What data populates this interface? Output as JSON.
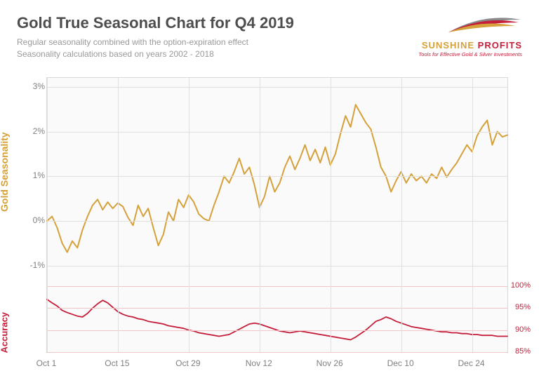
{
  "title": "Gold True Seasonal Chart for Q4 2019",
  "subtitle_line1": "Regular seasonality combined with the option-expiration effect",
  "subtitle_line2": "Seasonality calculations based on years 2002 - 2018",
  "logo": {
    "name_pre": "SUNSHINE ",
    "name_post": "PROFITS",
    "tagline": "Tools for Effective Gold & Silver Investments",
    "swoosh_colors": [
      "#d4a13a",
      "#c41e3a",
      "#8a8a8a"
    ]
  },
  "plot": {
    "background": "#fafafa",
    "grid_color": "#e0e0e0",
    "border_color": "#d9d9d9",
    "axis_bottom_color": "#b0b0b0"
  },
  "left_axis": {
    "label": "Gold Seasonality",
    "label_color": "#d4a13a",
    "tick_color": "#808080",
    "ticks": [
      {
        "v": -1,
        "label": "-1%"
      },
      {
        "v": 0,
        "label": "0%"
      },
      {
        "v": 1,
        "label": "1%"
      },
      {
        "v": 2,
        "label": "2%"
      },
      {
        "v": 3,
        "label": "3%"
      }
    ],
    "range_min": -1.4,
    "range_max": 3.2,
    "chart_top_frac": 0.0,
    "chart_bottom_frac": 0.75
  },
  "right_axis": {
    "label": "Accuracy",
    "label_color": "#c41e3a",
    "line_color": "#f2c6c6",
    "tick_color": "#c41e3a",
    "ticks": [
      {
        "v": 85,
        "label": "85%"
      },
      {
        "v": 90,
        "label": "90%"
      },
      {
        "v": 95,
        "label": "95%"
      },
      {
        "v": 100,
        "label": "100%"
      }
    ],
    "range_min": 85,
    "range_max": 100,
    "chart_top_frac": 0.76,
    "chart_bottom_frac": 1.0
  },
  "x_axis": {
    "tick_color": "#808080",
    "range_min": 0,
    "range_max": 91,
    "ticks": [
      {
        "v": 0,
        "label": "Oct 1"
      },
      {
        "v": 14,
        "label": "Oct 15"
      },
      {
        "v": 28,
        "label": "Oct 29"
      },
      {
        "v": 42,
        "label": "Nov 12"
      },
      {
        "v": 56,
        "label": "Nov 26"
      },
      {
        "v": 70,
        "label": "Dec 10"
      },
      {
        "v": 84,
        "label": "Dec 24"
      }
    ]
  },
  "series_gold": {
    "color": "#d4a13a",
    "width": 2.0,
    "data": [
      [
        0,
        0.0
      ],
      [
        1,
        0.1
      ],
      [
        2,
        -0.15
      ],
      [
        3,
        -0.5
      ],
      [
        4,
        -0.7
      ],
      [
        5,
        -0.45
      ],
      [
        6,
        -0.6
      ],
      [
        7,
        -0.2
      ],
      [
        8,
        0.1
      ],
      [
        9,
        0.35
      ],
      [
        10,
        0.48
      ],
      [
        11,
        0.25
      ],
      [
        12,
        0.42
      ],
      [
        13,
        0.28
      ],
      [
        14,
        0.4
      ],
      [
        15,
        0.32
      ],
      [
        16,
        0.08
      ],
      [
        17,
        -0.1
      ],
      [
        18,
        0.35
      ],
      [
        19,
        0.1
      ],
      [
        20,
        0.28
      ],
      [
        21,
        -0.15
      ],
      [
        22,
        -0.55
      ],
      [
        23,
        -0.3
      ],
      [
        24,
        0.2
      ],
      [
        25,
        0.0
      ],
      [
        26,
        0.48
      ],
      [
        27,
        0.3
      ],
      [
        28,
        0.58
      ],
      [
        29,
        0.42
      ],
      [
        30,
        0.15
      ],
      [
        31,
        0.05
      ],
      [
        32,
        0.0
      ],
      [
        33,
        0.35
      ],
      [
        34,
        0.65
      ],
      [
        35,
        1.0
      ],
      [
        36,
        0.85
      ],
      [
        37,
        1.1
      ],
      [
        38,
        1.4
      ],
      [
        39,
        1.05
      ],
      [
        40,
        1.2
      ],
      [
        41,
        0.8
      ],
      [
        42,
        0.3
      ],
      [
        43,
        0.55
      ],
      [
        44,
        1.0
      ],
      [
        45,
        0.65
      ],
      [
        46,
        0.85
      ],
      [
        47,
        1.2
      ],
      [
        48,
        1.45
      ],
      [
        49,
        1.15
      ],
      [
        50,
        1.4
      ],
      [
        51,
        1.7
      ],
      [
        52,
        1.35
      ],
      [
        53,
        1.6
      ],
      [
        54,
        1.3
      ],
      [
        55,
        1.65
      ],
      [
        56,
        1.25
      ],
      [
        57,
        1.5
      ],
      [
        58,
        1.95
      ],
      [
        59,
        2.35
      ],
      [
        60,
        2.1
      ],
      [
        61,
        2.6
      ],
      [
        62,
        2.4
      ],
      [
        63,
        2.2
      ],
      [
        64,
        2.05
      ],
      [
        65,
        1.65
      ],
      [
        66,
        1.2
      ],
      [
        67,
        1.0
      ],
      [
        68,
        0.65
      ],
      [
        69,
        0.9
      ],
      [
        70,
        1.1
      ],
      [
        71,
        0.85
      ],
      [
        72,
        1.05
      ],
      [
        73,
        0.9
      ],
      [
        74,
        1.0
      ],
      [
        75,
        0.85
      ],
      [
        76,
        1.05
      ],
      [
        77,
        0.95
      ],
      [
        78,
        1.2
      ],
      [
        79,
        0.98
      ],
      [
        80,
        1.15
      ],
      [
        81,
        1.3
      ],
      [
        82,
        1.5
      ],
      [
        83,
        1.7
      ],
      [
        84,
        1.55
      ],
      [
        85,
        1.9
      ],
      [
        86,
        2.1
      ],
      [
        87,
        2.25
      ],
      [
        88,
        1.7
      ],
      [
        89,
        2.0
      ],
      [
        90,
        1.88
      ],
      [
        91,
        1.92
      ]
    ]
  },
  "series_accuracy": {
    "color": "#c41e3a",
    "width": 1.8,
    "data": [
      [
        0,
        97.0
      ],
      [
        1,
        96.2
      ],
      [
        2,
        95.5
      ],
      [
        3,
        94.5
      ],
      [
        4,
        94.0
      ],
      [
        5,
        93.6
      ],
      [
        6,
        93.2
      ],
      [
        7,
        93.0
      ],
      [
        8,
        93.8
      ],
      [
        9,
        95.0
      ],
      [
        10,
        96.0
      ],
      [
        11,
        96.8
      ],
      [
        12,
        96.2
      ],
      [
        13,
        95.2
      ],
      [
        14,
        94.2
      ],
      [
        15,
        93.6
      ],
      [
        16,
        93.2
      ],
      [
        17,
        93.0
      ],
      [
        18,
        92.6
      ],
      [
        19,
        92.4
      ],
      [
        20,
        92.0
      ],
      [
        21,
        91.8
      ],
      [
        22,
        91.6
      ],
      [
        23,
        91.4
      ],
      [
        24,
        91.0
      ],
      [
        25,
        90.8
      ],
      [
        26,
        90.6
      ],
      [
        27,
        90.4
      ],
      [
        28,
        90.0
      ],
      [
        29,
        89.8
      ],
      [
        30,
        89.4
      ],
      [
        31,
        89.2
      ],
      [
        32,
        89.0
      ],
      [
        33,
        88.8
      ],
      [
        34,
        88.6
      ],
      [
        35,
        88.8
      ],
      [
        36,
        89.0
      ],
      [
        37,
        89.6
      ],
      [
        38,
        90.2
      ],
      [
        39,
        90.8
      ],
      [
        40,
        91.4
      ],
      [
        41,
        91.6
      ],
      [
        42,
        91.4
      ],
      [
        43,
        91.0
      ],
      [
        44,
        90.6
      ],
      [
        45,
        90.2
      ],
      [
        46,
        89.8
      ],
      [
        47,
        89.6
      ],
      [
        48,
        89.4
      ],
      [
        49,
        89.6
      ],
      [
        50,
        89.8
      ],
      [
        51,
        89.6
      ],
      [
        52,
        89.4
      ],
      [
        53,
        89.2
      ],
      [
        54,
        89.0
      ],
      [
        55,
        88.8
      ],
      [
        56,
        88.6
      ],
      [
        57,
        88.4
      ],
      [
        58,
        88.2
      ],
      [
        59,
        88.0
      ],
      [
        60,
        87.8
      ],
      [
        61,
        88.4
      ],
      [
        62,
        89.2
      ],
      [
        63,
        90.0
      ],
      [
        64,
        91.0
      ],
      [
        65,
        92.0
      ],
      [
        66,
        92.4
      ],
      [
        67,
        93.0
      ],
      [
        68,
        92.6
      ],
      [
        69,
        92.0
      ],
      [
        70,
        91.6
      ],
      [
        71,
        91.2
      ],
      [
        72,
        90.8
      ],
      [
        73,
        90.6
      ],
      [
        74,
        90.4
      ],
      [
        75,
        90.2
      ],
      [
        76,
        90.0
      ],
      [
        77,
        89.8
      ],
      [
        78,
        89.6
      ],
      [
        79,
        89.6
      ],
      [
        80,
        89.4
      ],
      [
        81,
        89.4
      ],
      [
        82,
        89.2
      ],
      [
        83,
        89.2
      ],
      [
        84,
        89.0
      ],
      [
        85,
        89.0
      ],
      [
        86,
        88.8
      ],
      [
        87,
        88.8
      ],
      [
        88,
        88.8
      ],
      [
        89,
        88.6
      ],
      [
        90,
        88.6
      ],
      [
        91,
        88.6
      ]
    ]
  }
}
